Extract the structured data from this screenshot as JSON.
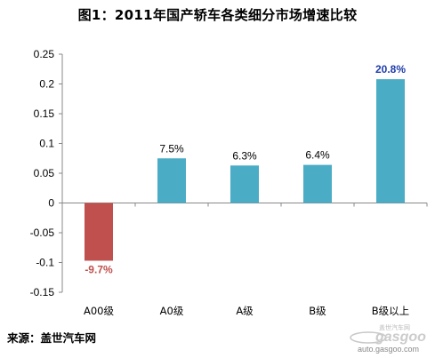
{
  "title": "图1：2011年国产轿车各类细分市场增速比较",
  "source": "来源：盖世汽车网",
  "watermark": {
    "brand": "gasgoo",
    "tagline": "盖世汽车网",
    "url": "auto.gasgoo.com"
  },
  "colors": {
    "positive": "#4BACC6",
    "negative": "#C0504D",
    "label_negative": "#C0504D",
    "label_highlight": "#1F3DAA",
    "label_normal": "#000000",
    "axis": "#888888"
  },
  "chart_data": {
    "type": "bar",
    "title": "图1：2011年国产轿车各类细分市场增速比较",
    "categories": [
      "A00级",
      "A0级",
      "A级",
      "B级",
      "B级以上"
    ],
    "values": [
      -0.097,
      0.075,
      0.063,
      0.064,
      0.208
    ],
    "data_labels": [
      "-9.7%",
      "7.5%",
      "6.3%",
      "6.4%",
      "20.8%"
    ],
    "ylim": [
      -0.15,
      0.25
    ],
    "yticks": [
      0.25,
      0.2,
      0.15,
      0.1,
      0.05,
      0,
      -0.05,
      -0.1,
      -0.15
    ],
    "ytick_labels": [
      "0.25",
      "0.2",
      "0.15",
      "0.1",
      "0.05",
      "0",
      "-0.05",
      "-0.1",
      "-0.15"
    ],
    "grid": false,
    "legend": "none"
  }
}
